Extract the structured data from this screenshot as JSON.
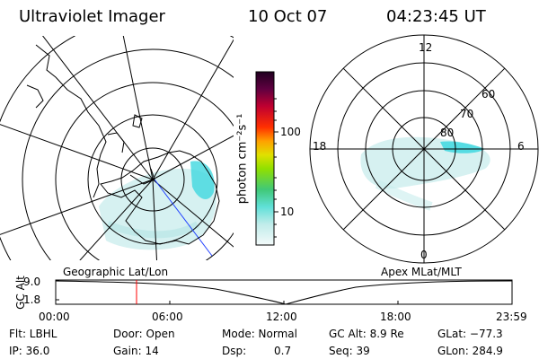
{
  "header": {
    "title": "Ultraviolet Imager",
    "date": "10 Oct 07",
    "time": "04:23:45 UT"
  },
  "colorbar": {
    "label": "photon cm⁻²s⁻¹",
    "ticks": [
      "100",
      "10"
    ]
  },
  "left_map": {
    "caption": "Geographic Lat/Lon"
  },
  "right_map": {
    "caption": "Apex MLat/MLT",
    "mlt_labels": {
      "top": "12",
      "left": "18",
      "right": "6",
      "bottom": "0"
    },
    "lat_labels": [
      "60",
      "70",
      "80"
    ]
  },
  "alt_plot": {
    "axis_label": "GC Alt",
    "y_ticks": [
      "9.0",
      "1.8"
    ],
    "x_ticks": [
      "00:00",
      "06:00",
      "12:00",
      "18:00",
      "23:59"
    ],
    "current_time_color": "#ff0000"
  },
  "info": {
    "row1": {
      "filter": "Flt: LBHL",
      "door": "Door: Open",
      "mode": "Mode: Normal",
      "gc_alt": "GC Alt: 8.9 Re",
      "glat": "GLat: −77.3"
    },
    "row2": {
      "ip": "IP: 36.0",
      "gain": "Gain: 14",
      "dsp_label": "Dsp:",
      "dsp_value": "0.7",
      "seq": "Seq: 39",
      "glon": "GLon: 284.9"
    }
  },
  "colors": {
    "aurora_main": "#c8ecec",
    "aurora_bright": "#40d8e0",
    "colorbar_stops": [
      "#e8f4f4",
      "#60e0d8",
      "#40c060",
      "#90e000",
      "#e0e000",
      "#ff9000",
      "#ff2000",
      "#c00040",
      "#200020"
    ]
  }
}
